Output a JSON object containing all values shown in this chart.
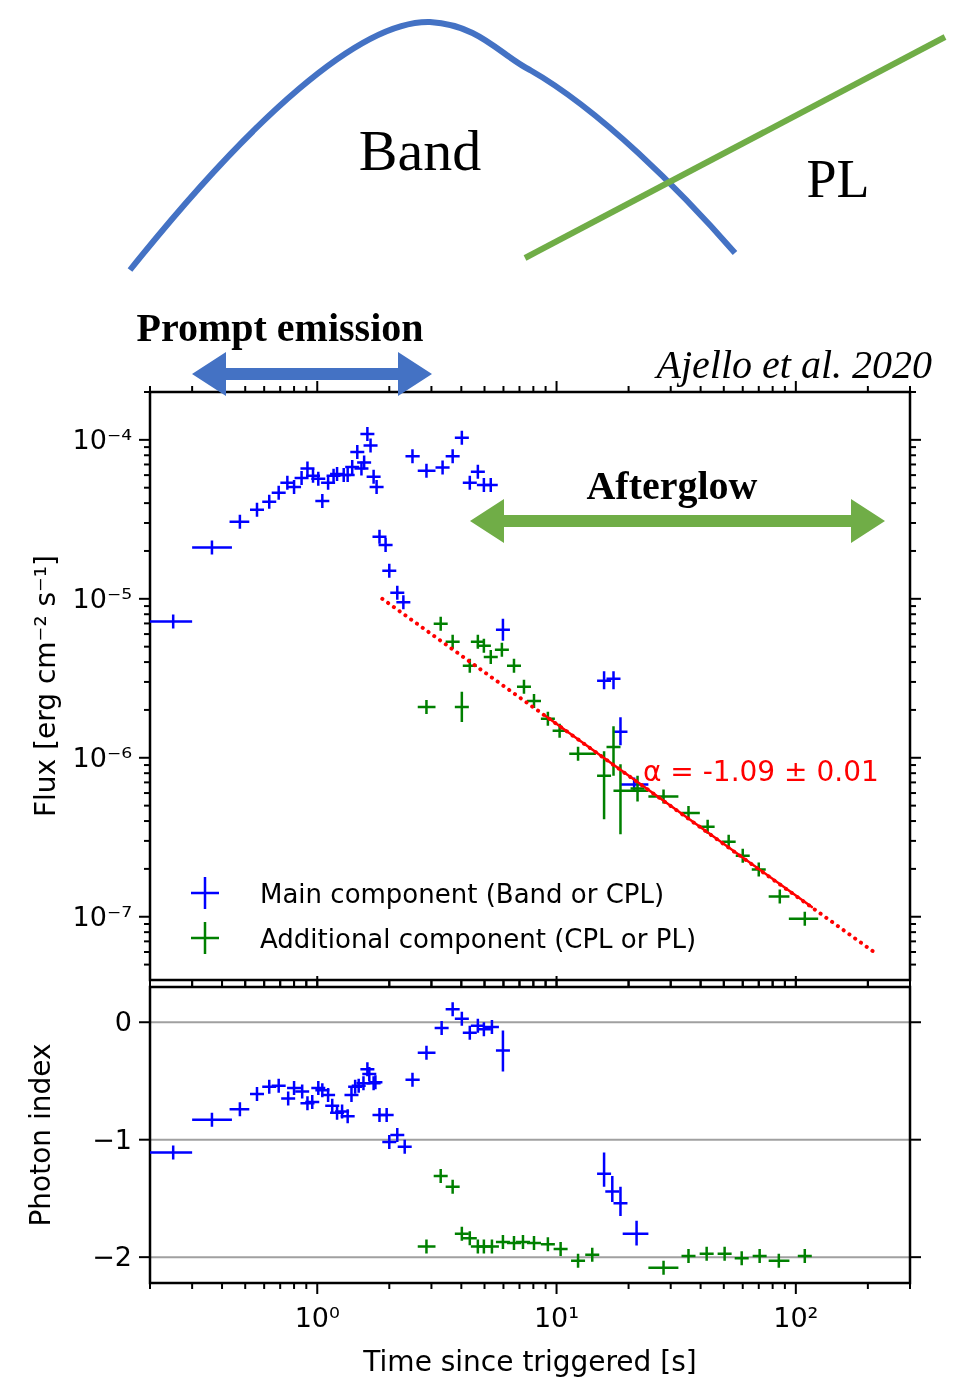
{
  "chart_data": [
    {
      "type": "scatter",
      "ylabel": "Flux [erg cm⁻² s⁻¹]",
      "log": "xy",
      "legend": "bottom left",
      "tick_labels": "y",
      "xlim": [
        0.2,
        300
      ],
      "xticks": [
        {
          "value": 0.2,
          "label": null
        },
        {
          "value": 0.3,
          "label": null
        },
        {
          "value": 0.4,
          "label": null
        },
        {
          "value": 0.5,
          "label": null
        },
        {
          "value": 0.6,
          "label": null
        },
        {
          "value": 0.7,
          "label": null
        },
        {
          "value": 0.8,
          "label": null
        },
        {
          "value": 0.9,
          "label": null
        },
        {
          "value": 1,
          "label": null
        },
        {
          "value": 2,
          "label": null
        },
        {
          "value": 3,
          "label": null
        },
        {
          "value": 4,
          "label": null
        },
        {
          "value": 5,
          "label": null
        },
        {
          "value": 6,
          "label": null
        },
        {
          "value": 7,
          "label": null
        },
        {
          "value": 8,
          "label": null
        },
        {
          "value": 9,
          "label": null
        },
        {
          "value": 10,
          "label": null
        },
        {
          "value": 20,
          "label": null
        },
        {
          "value": 30,
          "label": null
        },
        {
          "value": 40,
          "label": null
        },
        {
          "value": 50,
          "label": null
        },
        {
          "value": 60,
          "label": null
        },
        {
          "value": 70,
          "label": null
        },
        {
          "value": 80,
          "label": null
        },
        {
          "value": 90,
          "label": null
        },
        {
          "value": 100,
          "label": null
        },
        {
          "value": 200,
          "label": null
        },
        {
          "value": 300,
          "label": null
        }
      ],
      "ylim": [
        4e-08,
        0.0002
      ],
      "yticks": [
        {
          "value": 5e-08,
          "label": null
        },
        {
          "value": 6e-08,
          "label": null
        },
        {
          "value": 7e-08,
          "label": null
        },
        {
          "value": 8e-08,
          "label": null
        },
        {
          "value": 9e-08,
          "label": null
        },
        {
          "value": 1e-07,
          "label": "10⁻⁷"
        },
        {
          "value": 2e-07,
          "label": null
        },
        {
          "value": 3e-07,
          "label": null
        },
        {
          "value": 4e-07,
          "label": null
        },
        {
          "value": 5e-07,
          "label": null
        },
        {
          "value": 6e-07,
          "label": null
        },
        {
          "value": 7e-07,
          "label": null
        },
        {
          "value": 8e-07,
          "label": null
        },
        {
          "value": 9e-07,
          "label": null
        },
        {
          "value": 1e-06,
          "label": "10⁻⁶"
        },
        {
          "value": 2e-06,
          "label": null
        },
        {
          "value": 3e-06,
          "label": null
        },
        {
          "value": 4e-06,
          "label": null
        },
        {
          "value": 5e-06,
          "label": null
        },
        {
          "value": 6e-06,
          "label": null
        },
        {
          "value": 7e-06,
          "label": null
        },
        {
          "value": 8e-06,
          "label": null
        },
        {
          "value": 9e-06,
          "label": null
        },
        {
          "value": 1e-05,
          "label": "10⁻⁵"
        },
        {
          "value": 2e-05,
          "label": null
        },
        {
          "value": 3e-05,
          "label": null
        },
        {
          "value": 4e-05,
          "label": null
        },
        {
          "value": 5e-05,
          "label": null
        },
        {
          "value": 6e-05,
          "label": null
        },
        {
          "value": 7e-05,
          "label": null
        },
        {
          "value": 8e-05,
          "label": null
        },
        {
          "value": 9e-05,
          "label": null
        },
        {
          "value": 0.0001,
          "label": "10⁻⁴"
        },
        {
          "value": 0.0002,
          "label": null
        }
      ],
      "annotations": [
        "Band",
        "PL",
        "Prompt emission",
        "Ajello et al. 2020",
        "Afterglow",
        "α = -1.09 ± 0.01"
      ],
      "series": [
        {
          "name": "Main component (Band or CPL)",
          "color": "#0000ff",
          "marker": "cross",
          "x": [
            0.25,
            0.363,
            0.475,
            0.56,
            0.63,
            0.69,
            0.75,
            0.8,
            0.86,
            0.91,
            0.96,
            1.01,
            1.05,
            1.11,
            1.17,
            1.21,
            1.29,
            1.34,
            1.4,
            1.47,
            1.53,
            1.57,
            1.62,
            1.67,
            1.72,
            1.77,
            1.82,
            1.93,
            2.0,
            2.16,
            2.29,
            2.5,
            2.86,
            3.34,
            3.68,
            4.02,
            4.34,
            4.69,
            4.97,
            5.31,
            5.97,
            15.8,
            17.3,
            18.5,
            21.1
          ],
          "values": [
            7.2e-06,
            2.1e-05,
            3.05e-05,
            3.63e-05,
            4.08e-05,
            4.64e-05,
            5.37e-05,
            5.06e-05,
            5.76e-05,
            6.6e-05,
            5.94e-05,
            5.69e-05,
            4.13e-05,
            5.37e-05,
            5.94e-05,
            6.1e-05,
            6e-05,
            6e-05,
            6.76e-05,
            8.4e-05,
            6.6e-05,
            7.2e-05,
            0.000109,
            9.2e-05,
            5.85e-05,
            5.06e-05,
            2.46e-05,
            2.18e-05,
            1.5e-05,
            1.09e-05,
            9.5e-06,
            7.9e-05,
            6.4e-05,
            6.7e-05,
            7.9e-05,
            0.000103,
            5.37e-05,
            6.3e-05,
            5.2e-05,
            5.2e-05,
            6.4e-06,
            3.05e-06,
            3.14e-06,
            1.46e-06,
            6.8e-07
          ],
          "xerrors": [
            [
              0.2,
              0.3
            ],
            [
              0.3,
              0.44
            ],
            [
              0.43,
              0.52
            ],
            null,
            null,
            null,
            null,
            null,
            null,
            null,
            null,
            null,
            null,
            null,
            null,
            null,
            null,
            null,
            null,
            null,
            null,
            null,
            null,
            null,
            null,
            null,
            null,
            null,
            null,
            null,
            null,
            [
              2.34,
              2.68
            ],
            [
              2.63,
              3.12
            ],
            [
              3.12,
              3.51
            ],
            [
              3.47,
              3.9
            ],
            [
              3.83,
              4.21
            ],
            null,
            null,
            null,
            null,
            null,
            null,
            null,
            null,
            [
              18.6,
              24.2
            ]
          ],
          "errors": [
            null,
            null,
            null,
            null,
            null,
            null,
            null,
            null,
            null,
            null,
            null,
            null,
            null,
            null,
            null,
            null,
            null,
            null,
            null,
            null,
            null,
            null,
            null,
            null,
            null,
            null,
            null,
            null,
            null,
            null,
            null,
            null,
            null,
            null,
            null,
            null,
            null,
            null,
            null,
            null,
            [
              5.45e-06,
              7.5e-06
            ],
            [
              2.7e-06,
              3.5e-06
            ],
            [
              2.7e-06,
              3.5e-06
            ],
            [
              1.2e-06,
              1.8e-06
            ],
            null
          ]
        },
        {
          "name": "Additional component (CPL or PL)",
          "color": "#008000",
          "marker": "cross",
          "x": [
            2.86,
            3.28,
            3.68,
            4.02,
            4.34,
            4.69,
            4.97,
            5.31,
            5.91,
            6.64,
            7.31,
            8.05,
            9.2,
            10.3,
            12.3,
            15.8,
            17.3,
            18.5,
            21.8,
            28.0,
            35.6,
            42.8,
            52.4,
            60,
            70,
            85.7,
            109
          ],
          "values": [
            2.09e-06,
            6.97e-06,
            5.37e-06,
            2.09e-06,
            3.79e-06,
            5.37e-06,
            5.06e-06,
            4.31e-06,
            4.78e-06,
            3.79e-06,
            2.8e-06,
            2.28e-06,
            1.76e-06,
            1.48e-06,
            1.06e-06,
            7.7e-07,
            1.17e-06,
            6.2e-07,
            6.4e-07,
            5.7e-07,
            4.5e-07,
            3.68e-07,
            2.96e-07,
            2.42e-07,
            1.98e-07,
            1.34e-07,
            9.7e-08
          ],
          "xerrors": [
            [
              2.63,
              3.12
            ],
            null,
            null,
            null,
            null,
            null,
            null,
            null,
            null,
            null,
            null,
            null,
            null,
            null,
            [
              11.3,
              14.6
            ],
            null,
            null,
            [
              17.8,
              24.2
            ],
            null,
            [
              24.2,
              32.3
            ],
            [
              33.2,
              39.7
            ],
            null,
            null,
            null,
            null,
            [
              77,
              94
            ],
            [
              93.5,
              124
            ]
          ],
          "errors": [
            null,
            null,
            null,
            [
              1.68e-06,
              2.6e-06
            ],
            null,
            null,
            null,
            null,
            null,
            null,
            null,
            null,
            null,
            null,
            null,
            [
              4.1e-07,
              1.1e-06
            ],
            [
              7.7e-07,
              1.58e-06
            ],
            [
              3.3e-07,
              9.1e-07
            ],
            [
              5.3e-07,
              7.7e-07
            ],
            null,
            null,
            null,
            null,
            null,
            null,
            null,
            null
          ]
        },
        {
          "type": "line",
          "color": "#ff0000",
          "line_style": "dotted",
          "x": [
            1.87,
            212
          ],
          "values": [
            1e-05,
            6e-08
          ]
        },
        {
          "type": "line",
          "color": "#ff0000",
          "line_style": "solid",
          "x": [
            9.0,
            116.7
          ],
          "values": [
            1.83e-06,
            1.15e-07
          ]
        }
      ]
    },
    {
      "type": "scatter",
      "xlabel": "Time since triggered [s]",
      "ylabel": "Photon index",
      "log": "x",
      "marker": "cross",
      "grid": "y",
      "xlim": [
        0.2,
        300
      ],
      "xticks": [
        {
          "value": 0.2,
          "label": null
        },
        {
          "value": 0.3,
          "label": null
        },
        {
          "value": 0.4,
          "label": null
        },
        {
          "value": 0.5,
          "label": null
        },
        {
          "value": 0.6,
          "label": null
        },
        {
          "value": 0.7,
          "label": null
        },
        {
          "value": 0.8,
          "label": null
        },
        {
          "value": 0.9,
          "label": null
        },
        {
          "value": 1,
          "label": "10⁰"
        },
        {
          "value": 2,
          "label": null
        },
        {
          "value": 3,
          "label": null
        },
        {
          "value": 4,
          "label": null
        },
        {
          "value": 5,
          "label": null
        },
        {
          "value": 6,
          "label": null
        },
        {
          "value": 7,
          "label": null
        },
        {
          "value": 8,
          "label": null
        },
        {
          "value": 9,
          "label": null
        },
        {
          "value": 10,
          "label": "10¹"
        },
        {
          "value": 20,
          "label": null
        },
        {
          "value": 30,
          "label": null
        },
        {
          "value": 40,
          "label": null
        },
        {
          "value": 50,
          "label": null
        },
        {
          "value": 60,
          "label": null
        },
        {
          "value": 70,
          "label": null
        },
        {
          "value": 80,
          "label": null
        },
        {
          "value": 90,
          "label": null
        },
        {
          "value": 100,
          "label": "10²"
        },
        {
          "value": 200,
          "label": null
        },
        {
          "value": 300,
          "label": null
        }
      ],
      "ylim": [
        -2.22,
        0.3
      ],
      "yticks": [
        {
          "value": -2,
          "label": "−2"
        },
        {
          "value": -1,
          "label": "−1"
        },
        0
      ],
      "series": [
        {
          "color": "#0000ff",
          "x": [
            0.25,
            0.363,
            0.475,
            0.56,
            0.63,
            0.69,
            0.756,
            0.8,
            0.865,
            0.91,
            0.953,
            1.01,
            1.05,
            1.11,
            1.155,
            1.21,
            1.27,
            1.34,
            1.39,
            1.44,
            1.49,
            1.56,
            1.62,
            1.65,
            1.72,
            1.75,
            1.82,
            1.95,
            2.0,
            2.16,
            2.32,
            2.5,
            2.86,
            3.31,
            3.68,
            4.02,
            4.34,
            4.69,
            4.97,
            5.37,
            5.97,
            15.8,
            17.1,
            18.5,
            21.6
          ],
          "values": [
            -1.11,
            -0.83,
            -0.74,
            -0.61,
            -0.55,
            -0.54,
            -0.65,
            -0.56,
            -0.59,
            -0.69,
            -0.68,
            -0.56,
            -0.58,
            -0.62,
            -0.71,
            -0.77,
            -0.76,
            -0.8,
            -0.62,
            -0.55,
            -0.54,
            -0.52,
            -0.4,
            -0.44,
            -0.52,
            -0.51,
            -0.79,
            -0.79,
            -1.02,
            -0.96,
            -1.06,
            -0.49,
            -0.26,
            -0.05,
            0.11,
            0.03,
            -0.09,
            -0.03,
            -0.06,
            -0.04,
            -0.24,
            -1.29,
            -1.44,
            -1.54,
            -1.8
          ],
          "xerrors": [
            [
              0.2,
              0.3
            ],
            [
              0.3,
              0.44
            ],
            [
              0.43,
              0.52
            ],
            null,
            null,
            null,
            null,
            null,
            null,
            null,
            null,
            null,
            null,
            null,
            null,
            null,
            null,
            null,
            null,
            null,
            null,
            null,
            null,
            null,
            null,
            null,
            null,
            null,
            null,
            null,
            null,
            [
              2.34,
              2.68
            ],
            [
              2.63,
              3.12
            ],
            null,
            null,
            null,
            null,
            null,
            null,
            null,
            null,
            null,
            null,
            null,
            [
              18.9,
              24.2
            ]
          ],
          "errors": [
            null,
            null,
            null,
            null,
            null,
            null,
            null,
            null,
            null,
            null,
            null,
            null,
            null,
            null,
            null,
            null,
            null,
            null,
            null,
            null,
            null,
            null,
            null,
            null,
            null,
            null,
            null,
            null,
            null,
            null,
            null,
            null,
            null,
            null,
            null,
            null,
            null,
            null,
            null,
            null,
            [
              -0.42,
              -0.07
            ],
            [
              -1.4,
              -1.11
            ],
            [
              -1.53,
              -1.31
            ],
            [
              -1.65,
              -1.4
            ],
            [
              -1.9,
              -1.69
            ]
          ]
        },
        {
          "color": "#008000",
          "x": [
            2.86,
            3.28,
            3.68,
            4.02,
            4.34,
            4.69,
            4.97,
            5.37,
            5.97,
            6.64,
            7.24,
            8.05,
            9.2,
            10.4,
            12.3,
            14.1,
            28.0,
            35.6,
            42.4,
            50.4,
            59.4,
            70.6,
            84.9,
            109
          ],
          "values": [
            -1.91,
            -1.31,
            -1.4,
            -1.8,
            -1.84,
            -1.91,
            -1.91,
            -1.91,
            -1.87,
            -1.88,
            -1.87,
            -1.88,
            -1.89,
            -1.93,
            -2.03,
            -1.98,
            -2.09,
            -1.99,
            -1.97,
            -1.97,
            -2.01,
            -1.99,
            -2.03,
            -1.99
          ],
          "xerrors": [
            [
              2.63,
              3.12
            ],
            null,
            null,
            null,
            null,
            null,
            null,
            null,
            null,
            null,
            null,
            null,
            null,
            null,
            null,
            null,
            [
              24.2,
              32.3
            ],
            null,
            null,
            null,
            null,
            null,
            [
              77,
              94
            ],
            null
          ]
        }
      ]
    }
  ]
}
